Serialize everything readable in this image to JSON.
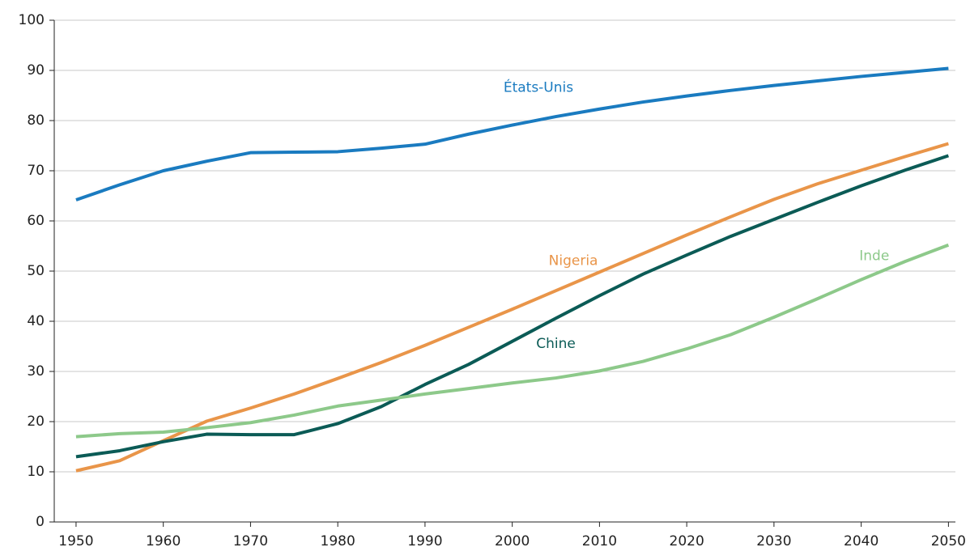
{
  "chart_data": {
    "type": "line",
    "x": [
      1950,
      1955,
      1960,
      1965,
      1970,
      1975,
      1980,
      1985,
      1990,
      1995,
      2000,
      2005,
      2010,
      2015,
      2020,
      2025,
      2030,
      2035,
      2040,
      2045,
      2050
    ],
    "series": [
      {
        "name": "États-Unis",
        "color": "#1a7bc0",
        "values": [
          64.2,
          67.2,
          70,
          71.9,
          73.6,
          73.7,
          73.8,
          74.5,
          75.3,
          77.3,
          79.1,
          80.8,
          82.3,
          83.7,
          84.9,
          86,
          87,
          87.9,
          88.8,
          89.6,
          90.4
        ]
      },
      {
        "name": "Nigeria",
        "color": "#e99549",
        "values": [
          10.2,
          12.2,
          16.2,
          20.1,
          22.7,
          25.5,
          28.6,
          31.8,
          35.2,
          38.8,
          42.4,
          46.1,
          49.8,
          53.5,
          57.2,
          60.8,
          64.3,
          67.4,
          70.1,
          72.8,
          75.4
        ]
      },
      {
        "name": "Chine",
        "color": "#0b5b56",
        "values": [
          13,
          14.2,
          16,
          17.5,
          17.4,
          17.4,
          19.6,
          23,
          27.4,
          31.4,
          36,
          40.6,
          45.1,
          49.4,
          53.2,
          56.9,
          60.3,
          63.7,
          67,
          70.1,
          73
        ]
      },
      {
        "name": "Inde",
        "color": "#8dc98a",
        "values": [
          17,
          17.6,
          17.9,
          18.8,
          19.8,
          21.3,
          23.1,
          24.3,
          25.5,
          26.6,
          27.7,
          28.7,
          30.1,
          32,
          34.5,
          37.3,
          40.8,
          44.5,
          48.3,
          51.9,
          55.2
        ]
      }
    ],
    "xlim": [
      1947.5,
      2050.8
    ],
    "xticks": [
      1950,
      1960,
      1970,
      1980,
      1990,
      2000,
      2010,
      2020,
      2030,
      2040,
      2050
    ],
    "ylim": [
      0,
      100
    ],
    "yticks": [
      0,
      10,
      20,
      30,
      40,
      50,
      60,
      70,
      80,
      90,
      100
    ],
    "grid": true
  }
}
